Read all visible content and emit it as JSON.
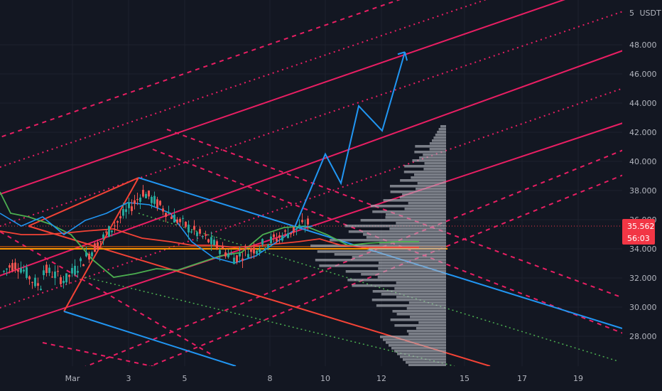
{
  "chart_data": {
    "type": "candlestick",
    "currency": "USDT",
    "price_axis": {
      "unit_label": "USDT",
      "unit_prefix": "5",
      "ticks": [
        "48.000",
        "46.000",
        "44.000",
        "42.000",
        "40.000",
        "38.000",
        "36.000",
        "34.000",
        "32.000",
        "30.000",
        "28.000"
      ],
      "tick_values": [
        48000,
        46000,
        44000,
        42000,
        40000,
        38000,
        36000,
        34000,
        32000,
        30000,
        28000
      ]
    },
    "time_axis": {
      "ticks": [
        "Mar",
        "3",
        "5",
        "8",
        "10",
        "12",
        "15",
        "17",
        "19"
      ]
    },
    "last_price": {
      "value": "35.562",
      "countdown": "56:03",
      "color": "#f23645"
    },
    "colors": {
      "background": "#131722",
      "up": "#26a69a",
      "down": "#ef5350",
      "channel_pink": "#e91e63",
      "channel_blue": "#2196f3",
      "forecast_path": "#2196f3",
      "horizontal_level": "#ff9800",
      "volume_profile": "#b2b5be",
      "ichimoku_span_a": "#4caf50",
      "ichimoku_span_b": "#f44336"
    },
    "forecast_path": [
      35500,
      40500,
      38500,
      43800,
      42100,
      47500
    ]
  }
}
